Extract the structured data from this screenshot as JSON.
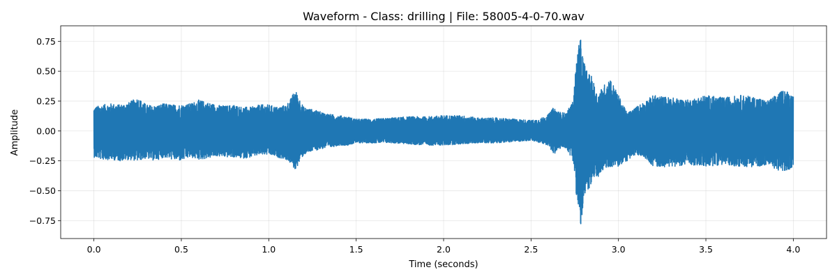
{
  "chart_data": {
    "type": "line",
    "title": "Waveform - Class: drilling | File: 58005-4-0-70.wav",
    "xlabel": "Time (seconds)",
    "ylabel": "Amplitude",
    "xlim": [
      -0.19,
      4.19
    ],
    "ylim": [
      -0.9,
      0.88
    ],
    "xticks": [
      0.0,
      0.5,
      1.0,
      1.5,
      2.0,
      2.5,
      3.0,
      3.5,
      4.0
    ],
    "xtick_labels": [
      "0.0",
      "0.5",
      "1.0",
      "1.5",
      "2.0",
      "2.5",
      "3.0",
      "3.5",
      "4.0"
    ],
    "yticks": [
      -0.75,
      -0.5,
      -0.25,
      0.0,
      0.25,
      0.5,
      0.75
    ],
    "ytick_labels": [
      "−0.75",
      "−0.50",
      "−0.25",
      "0.00",
      "0.25",
      "0.50",
      "0.75"
    ],
    "grid": true,
    "color": "#1f77b4",
    "series": [
      {
        "envelope_times": [
          0.0,
          0.05,
          0.1,
          0.15,
          0.2,
          0.25,
          0.3,
          0.35,
          0.4,
          0.45,
          0.5,
          0.55,
          0.6,
          0.65,
          0.7,
          0.75,
          0.8,
          0.85,
          0.9,
          0.95,
          1.0,
          1.05,
          1.1,
          1.13,
          1.15,
          1.18,
          1.2,
          1.25,
          1.3,
          1.35,
          1.4,
          1.45,
          1.5,
          1.6,
          1.7,
          1.8,
          1.9,
          2.0,
          2.1,
          2.2,
          2.3,
          2.4,
          2.5,
          2.55,
          2.6,
          2.63,
          2.66,
          2.7,
          2.74,
          2.76,
          2.78,
          2.8,
          2.82,
          2.85,
          2.88,
          2.9,
          2.95,
          3.0,
          3.05,
          3.1,
          3.15,
          3.2,
          3.3,
          3.4,
          3.5,
          3.6,
          3.7,
          3.8,
          3.85,
          3.9,
          3.95,
          4.0
        ],
        "envelope_max": [
          0.2,
          0.22,
          0.23,
          0.22,
          0.24,
          0.28,
          0.22,
          0.21,
          0.23,
          0.22,
          0.22,
          0.23,
          0.26,
          0.24,
          0.22,
          0.21,
          0.22,
          0.2,
          0.2,
          0.22,
          0.22,
          0.2,
          0.22,
          0.28,
          0.35,
          0.26,
          0.2,
          0.18,
          0.16,
          0.14,
          0.13,
          0.12,
          0.1,
          0.1,
          0.11,
          0.12,
          0.12,
          0.13,
          0.13,
          0.11,
          0.11,
          0.1,
          0.09,
          0.1,
          0.14,
          0.2,
          0.16,
          0.15,
          0.25,
          0.6,
          0.8,
          0.6,
          0.5,
          0.45,
          0.3,
          0.35,
          0.45,
          0.3,
          0.15,
          0.2,
          0.25,
          0.3,
          0.28,
          0.26,
          0.3,
          0.28,
          0.3,
          0.28,
          0.25,
          0.3,
          0.35,
          0.3
        ],
        "envelope_min": [
          -0.22,
          -0.24,
          -0.24,
          -0.25,
          -0.24,
          -0.25,
          -0.23,
          -0.25,
          -0.22,
          -0.24,
          -0.25,
          -0.22,
          -0.24,
          -0.23,
          -0.21,
          -0.22,
          -0.22,
          -0.23,
          -0.22,
          -0.2,
          -0.2,
          -0.22,
          -0.24,
          -0.28,
          -0.33,
          -0.25,
          -0.2,
          -0.17,
          -0.15,
          -0.14,
          -0.12,
          -0.12,
          -0.1,
          -0.1,
          -0.1,
          -0.11,
          -0.12,
          -0.12,
          -0.11,
          -0.1,
          -0.1,
          -0.09,
          -0.08,
          -0.1,
          -0.12,
          -0.2,
          -0.15,
          -0.14,
          -0.25,
          -0.55,
          -0.84,
          -0.65,
          -0.5,
          -0.45,
          -0.4,
          -0.35,
          -0.3,
          -0.3,
          -0.25,
          -0.2,
          -0.22,
          -0.3,
          -0.3,
          -0.28,
          -0.3,
          -0.28,
          -0.3,
          -0.3,
          -0.28,
          -0.32,
          -0.35,
          -0.3
        ]
      }
    ]
  }
}
